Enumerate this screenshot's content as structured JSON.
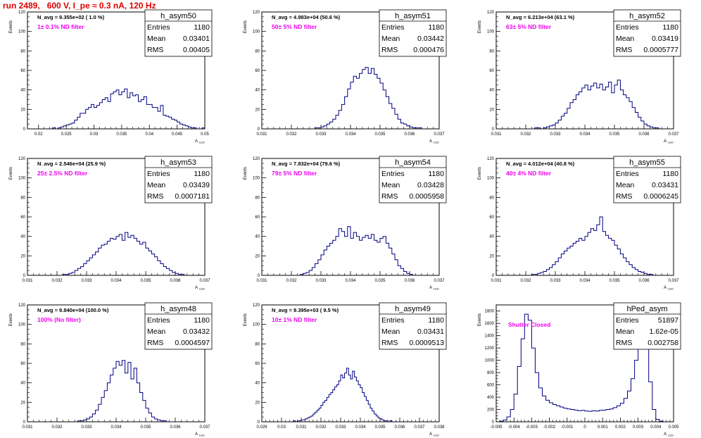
{
  "page": {
    "title": "run 2489,   600 V, I_pe ≈ 0.3 nA, 120 Hz"
  },
  "common": {
    "ylabel": "Events",
    "xlabel": "A",
    "xlabel_sub": "LED"
  },
  "colors": {
    "hist": "#000080",
    "note": "#ee00ee",
    "title": "#e00000",
    "frame": "#000000"
  },
  "chart_data": [
    {
      "type": "bar",
      "name": "h_asym50",
      "stats": {
        "Entries": "1180",
        "Mean": "0.03401",
        "RMS": "0.00405"
      },
      "navg": "N_avg = 9.355e+02 ( 1.0 %)",
      "filter": "1± 0.1% ND filter",
      "xlim": [
        0.018,
        0.05
      ],
      "ylim": [
        0,
        120
      ],
      "xticks": [
        "0.02",
        "0.025",
        "0.03",
        "0.035",
        "0.04",
        "0.045",
        "0.05"
      ],
      "xtick_values": [
        0.02,
        0.025,
        0.03,
        0.035,
        0.04,
        0.045,
        0.05
      ],
      "yticks": [
        0,
        20,
        40,
        60,
        80,
        100,
        120
      ],
      "bin_start": 0.0225,
      "bin_width": 0.0005,
      "values": [
        1,
        0,
        1,
        2,
        3,
        4,
        5,
        6,
        9,
        12,
        16,
        16,
        20,
        22,
        25,
        22,
        24,
        27,
        30,
        32,
        28,
        36,
        38,
        40,
        35,
        38,
        41,
        32,
        37,
        34,
        35,
        28,
        30,
        33,
        25,
        25,
        22,
        22,
        18,
        24,
        14,
        13,
        12,
        10,
        9,
        7,
        5,
        4,
        3,
        2,
        1,
        1,
        0,
        0,
        1
      ]
    },
    {
      "type": "bar",
      "name": "h_asym51",
      "stats": {
        "Entries": "1180",
        "Mean": "0.03442",
        "RMS": "0.000476"
      },
      "navg": "N_avg = 4.983e+04 (50.6 %)",
      "filter": "50± 5% ND filter",
      "xlim": [
        0.031,
        0.037
      ],
      "ylim": [
        0,
        120
      ],
      "xticks": [
        "0.031",
        "0.032",
        "0.033",
        "0.034",
        "0.035",
        "0.036",
        "0.037"
      ],
      "xtick_values": [
        0.031,
        0.032,
        0.033,
        0.034,
        0.035,
        0.036,
        0.037
      ],
      "yticks": [
        0,
        20,
        40,
        60,
        80,
        100,
        120
      ],
      "bin_start": 0.0328,
      "bin_width": 0.0001,
      "values": [
        1,
        1,
        2,
        3,
        5,
        7,
        10,
        14,
        19,
        25,
        33,
        41,
        48,
        54,
        52,
        57,
        61,
        63,
        57,
        62,
        56,
        52,
        47,
        40,
        33,
        26,
        21,
        15,
        10,
        6,
        5,
        3,
        2,
        1,
        1,
        1
      ]
    },
    {
      "type": "bar",
      "name": "h_asym52",
      "stats": {
        "Entries": "1180",
        "Mean": "0.03419",
        "RMS": "0.0005777"
      },
      "navg": "N_avg = 6.213e+04 (63.1 %)",
      "filter": "63± 5% ND filter",
      "xlim": [
        0.031,
        0.037
      ],
      "ylim": [
        0,
        120
      ],
      "xticks": [
        "0.031",
        "0.032",
        "0.033",
        "0.034",
        "0.035",
        "0.036",
        "0.037"
      ],
      "xtick_values": [
        0.031,
        0.032,
        0.033,
        0.034,
        0.035,
        0.036,
        0.037
      ],
      "yticks": [
        0,
        20,
        40,
        60,
        80,
        100,
        120
      ],
      "bin_start": 0.0323,
      "bin_width": 0.0001,
      "values": [
        1,
        1,
        0,
        1,
        2,
        3,
        4,
        6,
        9,
        13,
        16,
        21,
        27,
        30,
        35,
        38,
        42,
        45,
        40,
        44,
        47,
        42,
        46,
        40,
        43,
        48,
        37,
        45,
        50,
        40,
        35,
        32,
        28,
        22,
        17,
        12,
        8,
        5,
        3,
        2,
        1,
        1
      ]
    },
    {
      "type": "bar",
      "name": "h_asym53",
      "stats": {
        "Entries": "1180",
        "Mean": "0.03439",
        "RMS": "0.0007181"
      },
      "navg": "N_avg = 2.546e+04 (25.9 %)",
      "filter": "25± 2.5% ND filter",
      "xlim": [
        0.031,
        0.037
      ],
      "ylim": [
        0,
        120
      ],
      "xticks": [
        "0.031",
        "0.032",
        "0.033",
        "0.034",
        "0.035",
        "0.036",
        "0.037"
      ],
      "xtick_values": [
        0.031,
        0.032,
        0.033,
        0.034,
        0.035,
        0.036,
        0.037
      ],
      "yticks": [
        0,
        20,
        40,
        60,
        80,
        100,
        120
      ],
      "bin_start": 0.0322,
      "bin_width": 0.0001,
      "values": [
        1,
        1,
        2,
        3,
        5,
        7,
        9,
        12,
        15,
        18,
        21,
        24,
        28,
        31,
        32,
        35,
        38,
        37,
        40,
        42,
        36,
        44,
        39,
        41,
        38,
        35,
        32,
        34,
        28,
        25,
        22,
        19,
        15,
        12,
        9,
        7,
        5,
        3,
        2,
        1,
        1
      ]
    },
    {
      "type": "bar",
      "name": "h_asym54",
      "stats": {
        "Entries": "1180",
        "Mean": "0.03428",
        "RMS": "0.0005958"
      },
      "navg": "N_avg = 7.832e+04 (79.6 %)",
      "filter": "79± 5% ND filter",
      "xlim": [
        0.031,
        0.037
      ],
      "ylim": [
        0,
        120
      ],
      "xticks": [
        "0.031",
        "0.032",
        "0.033",
        "0.034",
        "0.035",
        "0.036",
        "0.037"
      ],
      "xtick_values": [
        0.031,
        0.032,
        0.033,
        0.034,
        0.035,
        0.036,
        0.037
      ],
      "yticks": [
        0,
        20,
        40,
        60,
        80,
        100,
        120
      ],
      "bin_start": 0.0323,
      "bin_width": 0.0001,
      "values": [
        1,
        2,
        3,
        5,
        8,
        12,
        16,
        21,
        26,
        30,
        33,
        36,
        40,
        48,
        45,
        40,
        50,
        38,
        44,
        40,
        36,
        39,
        41,
        38,
        42,
        36,
        34,
        38,
        40,
        33,
        28,
        22,
        16,
        10,
        7,
        4,
        2,
        1
      ]
    },
    {
      "type": "bar",
      "name": "h_asym55",
      "stats": {
        "Entries": "1180",
        "Mean": "0.03431",
        "RMS": "0.0006245"
      },
      "navg": "N_avg = 4.012e+04 (40.8 %)",
      "filter": "40± 4% ND filter",
      "xlim": [
        0.031,
        0.037
      ],
      "ylim": [
        0,
        120
      ],
      "xticks": [
        "0.031",
        "0.032",
        "0.033",
        "0.034",
        "0.035",
        "0.036",
        "0.037"
      ],
      "xtick_values": [
        0.031,
        0.032,
        0.033,
        0.034,
        0.035,
        0.036,
        0.037
      ],
      "yticks": [
        0,
        20,
        40,
        60,
        80,
        100,
        120
      ],
      "bin_start": 0.0322,
      "bin_width": 0.0001,
      "values": [
        1,
        1,
        2,
        3,
        4,
        6,
        8,
        11,
        14,
        18,
        22,
        25,
        28,
        30,
        33,
        35,
        38,
        36,
        40,
        44,
        48,
        46,
        52,
        60,
        45,
        41,
        38,
        36,
        31,
        27,
        22,
        18,
        14,
        11,
        8,
        6,
        4,
        3,
        2,
        1,
        1
      ]
    },
    {
      "type": "bar",
      "name": "h_asym48",
      "stats": {
        "Entries": "1180",
        "Mean": "0.03432",
        "RMS": "0.0004597"
      },
      "navg": "N_avg = 9.840e+04 (100.0 %)",
      "filter": "100% (No filter)",
      "xlim": [
        0.031,
        0.037
      ],
      "ylim": [
        0,
        120
      ],
      "xticks": [
        "0.031",
        "0.032",
        "0.033",
        "0.034",
        "0.035",
        "0.036",
        "0.037"
      ],
      "xtick_values": [
        0.031,
        0.032,
        0.033,
        0.034,
        0.035,
        0.036,
        0.037
      ],
      "yticks": [
        0,
        20,
        40,
        60,
        80,
        100,
        120
      ],
      "bin_start": 0.0327,
      "bin_width": 0.0001,
      "values": [
        1,
        1,
        2,
        3,
        5,
        8,
        12,
        18,
        25,
        32,
        40,
        48,
        55,
        62,
        58,
        63,
        50,
        61,
        44,
        55,
        40,
        30,
        22,
        14,
        9,
        5,
        3,
        2,
        1,
        1
      ]
    },
    {
      "type": "bar",
      "name": "h_asym49",
      "stats": {
        "Entries": "1180",
        "Mean": "0.03431",
        "RMS": "0.0009513"
      },
      "navg": "N_avg = 9.395e+03 ( 9.5 %)",
      "filter": "10± 1% ND filter",
      "xlim": [
        0.029,
        0.038
      ],
      "ylim": [
        0,
        120
      ],
      "xticks": [
        "0.029",
        "0.03",
        "0.031",
        "0.032",
        "0.033",
        "0.034",
        "0.035",
        "0.036",
        "0.037",
        "0.038"
      ],
      "xtick_values": [
        0.029,
        0.03,
        0.031,
        0.032,
        0.033,
        0.034,
        0.035,
        0.036,
        0.037,
        0.038
      ],
      "yticks": [
        0,
        20,
        40,
        60,
        80,
        100,
        120
      ],
      "bin_start": 0.0306,
      "bin_width": 0.0001,
      "values": [
        1,
        0,
        1,
        1,
        2,
        2,
        3,
        4,
        5,
        6,
        8,
        10,
        12,
        14,
        17,
        20,
        22,
        25,
        28,
        30,
        33,
        36,
        38,
        42,
        48,
        45,
        50,
        55,
        48,
        44,
        52,
        46,
        42,
        38,
        35,
        30,
        26,
        22,
        18,
        14,
        11,
        8,
        6,
        4,
        3,
        2,
        1,
        1,
        0,
        1
      ]
    },
    {
      "type": "bar",
      "name": "hPed_asym",
      "stats": {
        "Entries": "51897",
        "Mean": "1.62e-05",
        "RMS": "0.002758"
      },
      "navg": "",
      "filter": "Shutter Closed",
      "xlim": [
        -0.005,
        0.005
      ],
      "ylim": [
        0,
        1900
      ],
      "xticks": [
        "-0.005",
        "-0.004",
        "-0.003",
        "-0.002",
        "-0.001",
        "0",
        "0.001",
        "0.002",
        "0.003",
        "0.004",
        "0.005"
      ],
      "xtick_values": [
        -0.005,
        -0.004,
        -0.003,
        -0.002,
        -0.001,
        0,
        0.001,
        0.002,
        0.003,
        0.004,
        0.005
      ],
      "yticks": [
        0,
        200,
        400,
        600,
        800,
        1000,
        1200,
        1400,
        1600,
        1800
      ],
      "bin_start": -0.0048,
      "bin_width": 0.0002,
      "values": [
        10,
        30,
        80,
        200,
        450,
        900,
        1350,
        1750,
        1650,
        1200,
        800,
        550,
        420,
        350,
        310,
        280,
        260,
        240,
        220,
        210,
        200,
        190,
        180,
        185,
        175,
        170,
        180,
        175,
        185,
        190,
        200,
        210,
        230,
        260,
        300,
        380,
        500,
        700,
        1000,
        1400,
        1700,
        1300,
        650,
        200,
        40,
        10
      ]
    }
  ]
}
